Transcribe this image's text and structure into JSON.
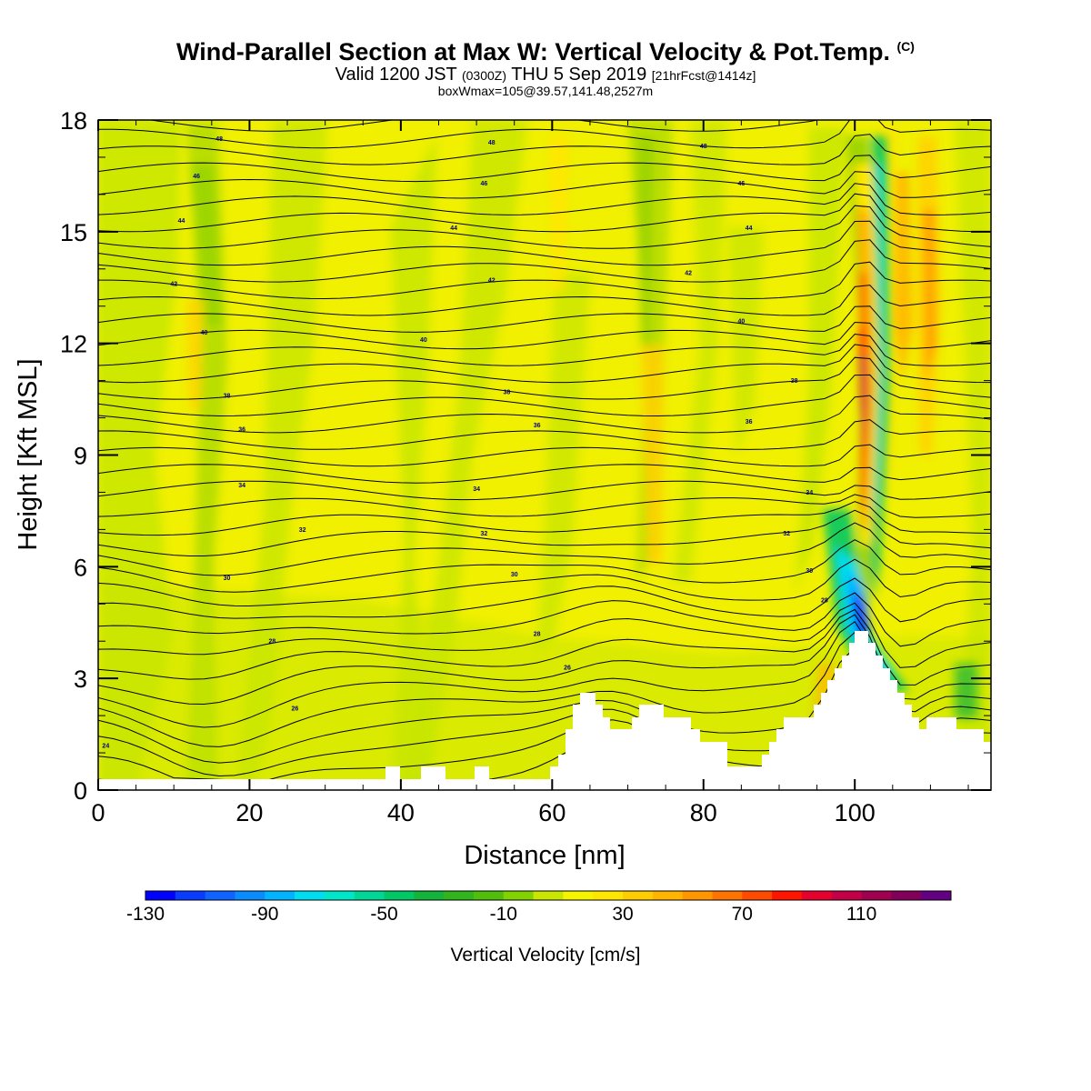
{
  "header": {
    "title": "Wind-Parallel Section at Max W: Vertical Velocity & Pot.Temp.",
    "title_suffix": "(C)",
    "valid_prefix": "Valid 1200 JST",
    "valid_utc": "(0300Z)",
    "valid_date": "THU 5 Sep 2019",
    "forecast": "[21hrFcst@1414z]",
    "boxw": "boxWmax=105@39.57,141.48,2527m"
  },
  "chart_data": {
    "type": "contour",
    "xlabel": "Distance [nm]",
    "ylabel": "Height [Kft MSL]",
    "xlim": [
      0,
      118
    ],
    "ylim": [
      0,
      18
    ],
    "x_ticks": [
      0,
      20,
      40,
      60,
      80,
      100
    ],
    "y_ticks": [
      0,
      3,
      6,
      9,
      12,
      15,
      18
    ],
    "grid": false,
    "colorbar": {
      "label": "Vertical Velocity [cm/s]",
      "tick_labels": [
        "-130",
        "-90",
        "-50",
        "-10",
        "30",
        "70",
        "110"
      ],
      "tick_values": [
        -130,
        -90,
        -50,
        -10,
        30,
        70,
        110
      ],
      "range": [
        -130,
        140
      ],
      "colors": [
        "#0000ff",
        "#0a3cff",
        "#0f64ff",
        "#0a8cff",
        "#00b4ff",
        "#00dcf0",
        "#00e6c8",
        "#00d796",
        "#00c864",
        "#14b43c",
        "#32b41e",
        "#50be0a",
        "#82d200",
        "#c8e600",
        "#f5f500",
        "#ffe600",
        "#ffcd00",
        "#ffb400",
        "#ff9600",
        "#ff7300",
        "#ff4b00",
        "#ff1400",
        "#e6002d",
        "#c30046",
        "#a00050",
        "#82005a",
        "#640082"
      ]
    },
    "contour_labels": [
      {
        "text": "24",
        "x": 1,
        "y": 1.2
      },
      {
        "text": "26",
        "x": 26,
        "y": 2.2
      },
      {
        "text": "26",
        "x": 62,
        "y": 3.3
      },
      {
        "text": "28",
        "x": 23,
        "y": 4.0
      },
      {
        "text": "28",
        "x": 58,
        "y": 4.2
      },
      {
        "text": "28",
        "x": 96,
        "y": 5.1
      },
      {
        "text": "30",
        "x": 17,
        "y": 5.7
      },
      {
        "text": "30",
        "x": 55,
        "y": 5.8
      },
      {
        "text": "30",
        "x": 94,
        "y": 5.9
      },
      {
        "text": "32",
        "x": 27,
        "y": 7.0
      },
      {
        "text": "32",
        "x": 51,
        "y": 6.9
      },
      {
        "text": "32",
        "x": 91,
        "y": 6.9
      },
      {
        "text": "34",
        "x": 19,
        "y": 8.2
      },
      {
        "text": "34",
        "x": 50,
        "y": 8.1
      },
      {
        "text": "34",
        "x": 94,
        "y": 8.0
      },
      {
        "text": "36",
        "x": 19,
        "y": 9.7
      },
      {
        "text": "36",
        "x": 58,
        "y": 9.8
      },
      {
        "text": "36",
        "x": 86,
        "y": 9.9
      },
      {
        "text": "38",
        "x": 17,
        "y": 10.6
      },
      {
        "text": "38",
        "x": 54,
        "y": 10.7
      },
      {
        "text": "38",
        "x": 92,
        "y": 11.0
      },
      {
        "text": "40",
        "x": 14,
        "y": 12.3
      },
      {
        "text": "40",
        "x": 43,
        "y": 12.1
      },
      {
        "text": "40",
        "x": 85,
        "y": 12.6
      },
      {
        "text": "42",
        "x": 10,
        "y": 13.6
      },
      {
        "text": "42",
        "x": 52,
        "y": 13.7
      },
      {
        "text": "42",
        "x": 78,
        "y": 13.9
      },
      {
        "text": "44",
        "x": 11,
        "y": 15.3
      },
      {
        "text": "44",
        "x": 47,
        "y": 15.1
      },
      {
        "text": "44",
        "x": 86,
        "y": 15.1
      },
      {
        "text": "46",
        "x": 13,
        "y": 16.5
      },
      {
        "text": "46",
        "x": 51,
        "y": 16.3
      },
      {
        "text": "46",
        "x": 85,
        "y": 16.3
      },
      {
        "text": "48",
        "x": 16,
        "y": 17.5
      },
      {
        "text": "48",
        "x": 52,
        "y": 17.4
      },
      {
        "text": "48",
        "x": 80,
        "y": 17.3
      }
    ]
  }
}
